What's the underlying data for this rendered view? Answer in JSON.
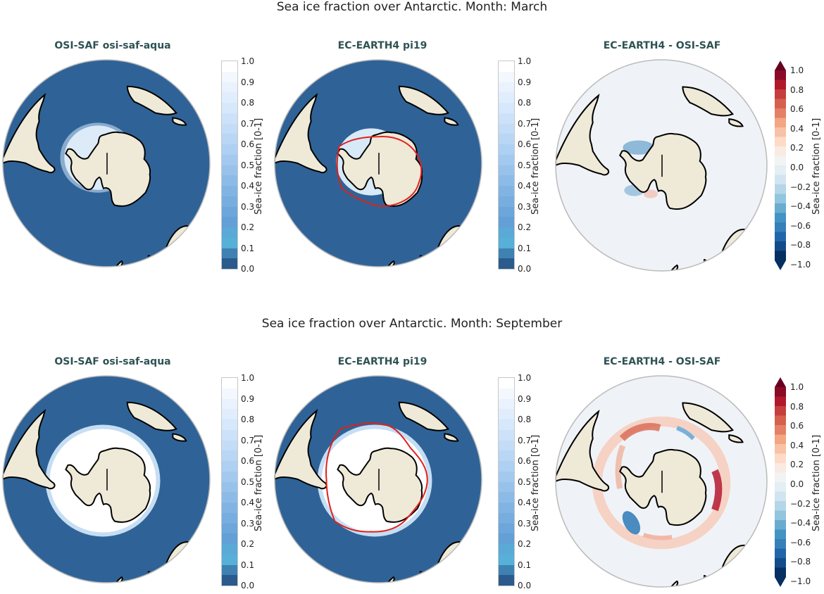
{
  "chart_data": [
    {
      "type": "heatmap",
      "projection": "south-polar-stereographic",
      "row": 0,
      "col": 0,
      "suptitle": "Sea ice fraction over Antarctic. Month: March",
      "title": "OSI-SAF osi-saf-aqua",
      "colorbar": {
        "label": "Sea-ice fraction [0-1]",
        "range": [
          0.0,
          1.0
        ],
        "step": 0.05,
        "ticks": [
          "1.0",
          "0.9",
          "0.8",
          "0.7",
          "0.6",
          "0.5",
          "0.4",
          "0.3",
          "0.2",
          "0.1",
          "0.0"
        ]
      },
      "description": "Sparse ice near Antarctic coast, mostly Weddell and Ross seas; open ocean elsewhere (0.0)"
    },
    {
      "type": "heatmap",
      "projection": "south-polar-stereographic",
      "row": 0,
      "col": 1,
      "title": "EC-EARTH4 pi19",
      "colorbar": {
        "label": "Sea-ice fraction [0-1]",
        "range": [
          0.0,
          1.0
        ],
        "step": 0.05,
        "ticks": [
          "1.0",
          "0.9",
          "0.8",
          "0.7",
          "0.6",
          "0.5",
          "0.4",
          "0.3",
          "0.2",
          "0.1",
          "0.0"
        ]
      },
      "overlay": "red contour of ice edge (model)",
      "description": "Model ice close to coast, similar extent to observations"
    },
    {
      "type": "heatmap",
      "projection": "south-polar-stereographic",
      "row": 0,
      "col": 2,
      "title": "EC-EARTH4 -  OSI-SAF",
      "colorbar": {
        "label": "Sea-ice fraction [0-1]",
        "range": [
          -1.0,
          1.0
        ],
        "step": 0.1,
        "extend": "both",
        "ticks": [
          "1.0",
          "0.8",
          "0.6",
          "0.4",
          "0.2",
          "0.0",
          "−0.2",
          "−0.4",
          "−0.6",
          "−0.8",
          "−1.0"
        ]
      },
      "description": "Mostly near zero; weak negative (blue) bias in Weddell Sea and Ross Sea, slight positive spots"
    },
    {
      "type": "heatmap",
      "projection": "south-polar-stereographic",
      "row": 1,
      "col": 0,
      "suptitle": "Sea ice fraction over Antarctic. Month: September",
      "title": "OSI-SAF osi-saf-aqua",
      "colorbar": {
        "label": "Sea-ice fraction [0-1]",
        "range": [
          0.0,
          1.0
        ],
        "step": 0.05,
        "ticks": [
          "1.0",
          "0.9",
          "0.8",
          "0.7",
          "0.6",
          "0.5",
          "0.4",
          "0.3",
          "0.2",
          "0.1",
          "0.0"
        ]
      },
      "description": "Broad ring of high ice fraction (~0.9-1.0) surrounding Antarctica"
    },
    {
      "type": "heatmap",
      "projection": "south-polar-stereographic",
      "row": 1,
      "col": 1,
      "title": "EC-EARTH4 pi19",
      "colorbar": {
        "label": "Sea-ice fraction [0-1]",
        "range": [
          0.0,
          1.0
        ],
        "step": 0.05,
        "ticks": [
          "1.0",
          "0.9",
          "0.8",
          "0.7",
          "0.6",
          "0.5",
          "0.4",
          "0.3",
          "0.2",
          "0.1",
          "0.0"
        ]
      },
      "overlay": "red contour of ice edge (model)",
      "description": "Broad ice ring, extent similar to observations"
    },
    {
      "type": "heatmap",
      "projection": "south-polar-stereographic",
      "row": 1,
      "col": 2,
      "title": "EC-EARTH4 -  OSI-SAF",
      "colorbar": {
        "label": "Sea-ice fraction [0-1]",
        "range": [
          -1.0,
          1.0
        ],
        "step": 0.1,
        "extend": "both",
        "ticks": [
          "1.0",
          "0.8",
          "0.6",
          "0.4",
          "0.2",
          "0.0",
          "−0.2",
          "−0.4",
          "−0.6",
          "−0.8",
          "−1.0"
        ]
      },
      "description": "Positive (red) bias along ice edge in Weddell sector and Indian sector (~+0.6 to +0.9); negative (blue) patches in Pacific sector (~-0.6) and small near South Atlantic"
    }
  ],
  "figure": {
    "suptitles": [
      "Sea ice fraction over Antarctic. Month: March",
      "Sea ice fraction over Antarctic. Month: September"
    ],
    "panel_titles": [
      "OSI-SAF osi-saf-aqua",
      "EC-EARTH4 pi19",
      "EC-EARTH4 -  OSI-SAF"
    ],
    "colorbar_label": "Sea-ice fraction [0-1]",
    "seq_ticks": [
      "1.0",
      "0.9",
      "0.8",
      "0.7",
      "0.6",
      "0.5",
      "0.4",
      "0.3",
      "0.2",
      "0.1",
      "0.0"
    ],
    "div_ticks": [
      "1.0",
      "0.8",
      "0.6",
      "0.4",
      "0.2",
      "0.0",
      "−0.2",
      "−0.4",
      "−0.6",
      "−0.8",
      "−1.0"
    ]
  },
  "colors": {
    "ocean": "#2f6397",
    "land": "#efe9d8",
    "diff_bg": "#eff3f7",
    "contour": "#e0201c",
    "title": "#2f5254"
  }
}
